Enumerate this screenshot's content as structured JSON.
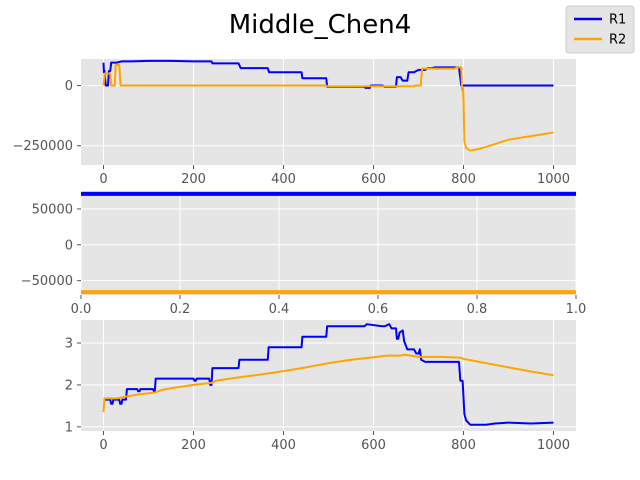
{
  "figure": {
    "title": "Middle_Chen4"
  },
  "legend": {
    "placement": "top-right",
    "entries": [
      {
        "label": "R1",
        "color": "#0000ff"
      },
      {
        "label": "R2",
        "color": "#ffa500"
      }
    ]
  },
  "chart_data": [
    {
      "type": "line",
      "xlim": [
        -50,
        1050
      ],
      "ylim": [
        -330000,
        110000
      ],
      "xticks": [
        0,
        200,
        400,
        600,
        800,
        1000
      ],
      "yticks": [
        0,
        -250000
      ],
      "ytick_labels": [
        "0",
        "−250000"
      ],
      "grid": true,
      "series": [
        {
          "name": "R1",
          "color": "#0000ff",
          "points": [
            [
              0,
              95000
            ],
            [
              1,
              55000
            ],
            [
              2,
              62000
            ],
            [
              5,
              0
            ],
            [
              10,
              0
            ],
            [
              12,
              60000
            ],
            [
              15,
              60000
            ],
            [
              17,
              95000
            ],
            [
              30,
              95000
            ],
            [
              40,
              100000
            ],
            [
              60,
              100000
            ],
            [
              62,
              100000
            ],
            [
              100,
              102000
            ],
            [
              150,
              102000
            ],
            [
              200,
              100000
            ],
            [
              240,
              100000
            ],
            [
              242,
              92000
            ],
            [
              300,
              92000
            ],
            [
              305,
              72000
            ],
            [
              365,
              72000
            ],
            [
              368,
              55000
            ],
            [
              440,
              55000
            ],
            [
              442,
              30000
            ],
            [
              495,
              30000
            ],
            [
              497,
              -5000
            ],
            [
              580,
              -5000
            ],
            [
              582,
              -10000
            ],
            [
              592,
              -10000
            ],
            [
              594,
              0
            ],
            [
              600,
              0
            ],
            [
              620,
              0
            ],
            [
              625,
              -5000
            ],
            [
              650,
              -5000
            ],
            [
              652,
              35000
            ],
            [
              660,
              35000
            ],
            [
              665,
              20000
            ],
            [
              675,
              20000
            ],
            [
              678,
              55000
            ],
            [
              690,
              55000
            ],
            [
              700,
              65000
            ],
            [
              715,
              65000
            ],
            [
              720,
              72000
            ],
            [
              730,
              72000
            ],
            [
              735,
              75000
            ],
            [
              790,
              75000
            ],
            [
              795,
              0
            ],
            [
              800,
              0
            ],
            [
              1000,
              0
            ]
          ]
        },
        {
          "name": "R2",
          "color": "#ffa500",
          "points": [
            [
              0,
              0
            ],
            [
              3,
              50000
            ],
            [
              15,
              50000
            ],
            [
              17,
              0
            ],
            [
              25,
              0
            ],
            [
              27,
              85000
            ],
            [
              35,
              85000
            ],
            [
              38,
              0
            ],
            [
              200,
              0
            ],
            [
              400,
              0
            ],
            [
              495,
              0
            ],
            [
              497,
              -3000
            ],
            [
              690,
              -3000
            ],
            [
              693,
              0
            ],
            [
              700,
              0
            ],
            [
              705,
              0
            ],
            [
              708,
              70000
            ],
            [
              780,
              70000
            ],
            [
              785,
              75000
            ],
            [
              795,
              75000
            ],
            [
              797,
              -20000
            ],
            [
              799,
              -10000
            ],
            [
              800,
              -60000
            ],
            [
              802,
              -235000
            ],
            [
              806,
              -260000
            ],
            [
              815,
              -270000
            ],
            [
              830,
              -265000
            ],
            [
              850,
              -255000
            ],
            [
              875,
              -240000
            ],
            [
              900,
              -225000
            ],
            [
              950,
              -210000
            ],
            [
              1000,
              -195000
            ]
          ]
        }
      ]
    },
    {
      "type": "line",
      "xlim": [
        0,
        1
      ],
      "ylim": [
        -70000,
        75000
      ],
      "xticks": [
        0,
        0.2,
        0.4,
        0.6,
        0.8,
        1
      ],
      "xtick_labels": [
        "0.0",
        "0.2",
        "0.4",
        "0.6",
        "0.8",
        "1.0"
      ],
      "yticks": [
        50000,
        0,
        -50000
      ],
      "ytick_labels": [
        "50000",
        "0",
        "−50000"
      ],
      "grid": true,
      "series": [
        {
          "name": "R1",
          "color": "#0000ff",
          "points": [
            [
              0,
              71000
            ],
            [
              1,
              71000
            ]
          ]
        },
        {
          "name": "R2",
          "color": "#ffa500",
          "points": [
            [
              0,
              -66000
            ],
            [
              1,
              -66000
            ]
          ]
        }
      ]
    },
    {
      "type": "line",
      "xlim": [
        -50,
        1050
      ],
      "ylim": [
        0.9,
        3.55
      ],
      "xticks": [
        0,
        200,
        400,
        600,
        800,
        1000
      ],
      "yticks": [
        3,
        2,
        1
      ],
      "grid": true,
      "series": [
        {
          "name": "R1",
          "color": "#0000ff",
          "points": [
            [
              0,
              1.65
            ],
            [
              15,
              1.65
            ],
            [
              17,
              1.55
            ],
            [
              20,
              1.55
            ],
            [
              22,
              1.65
            ],
            [
              35,
              1.65
            ],
            [
              37,
              1.55
            ],
            [
              40,
              1.55
            ],
            [
              42,
              1.65
            ],
            [
              50,
              1.65
            ],
            [
              52,
              1.9
            ],
            [
              75,
              1.9
            ],
            [
              77,
              1.85
            ],
            [
              80,
              1.85
            ],
            [
              82,
              1.9
            ],
            [
              110,
              1.9
            ],
            [
              112,
              1.85
            ],
            [
              114,
              1.85
            ],
            [
              116,
              2.15
            ],
            [
              200,
              2.15
            ],
            [
              202,
              2.1
            ],
            [
              205,
              2.1
            ],
            [
              207,
              2.15
            ],
            [
              235,
              2.15
            ],
            [
              237,
              2.0
            ],
            [
              240,
              2.0
            ],
            [
              242,
              2.4
            ],
            [
              300,
              2.4
            ],
            [
              302,
              2.6
            ],
            [
              365,
              2.6
            ],
            [
              367,
              2.9
            ],
            [
              440,
              2.9
            ],
            [
              442,
              3.15
            ],
            [
              495,
              3.15
            ],
            [
              497,
              3.4
            ],
            [
              580,
              3.4
            ],
            [
              585,
              3.45
            ],
            [
              620,
              3.4
            ],
            [
              625,
              3.4
            ],
            [
              635,
              3.45
            ],
            [
              640,
              3.35
            ],
            [
              650,
              3.35
            ],
            [
              652,
              3.1
            ],
            [
              655,
              3.1
            ],
            [
              658,
              3.25
            ],
            [
              665,
              3.3
            ],
            [
              668,
              3.05
            ],
            [
              675,
              2.85
            ],
            [
              690,
              2.85
            ],
            [
              695,
              2.75
            ],
            [
              700,
              2.75
            ],
            [
              703,
              2.85
            ],
            [
              706,
              2.6
            ],
            [
              715,
              2.55
            ],
            [
              790,
              2.55
            ],
            [
              793,
              2.1
            ],
            [
              798,
              2.1
            ],
            [
              800,
              1.7
            ],
            [
              802,
              1.3
            ],
            [
              806,
              1.15
            ],
            [
              815,
              1.05
            ],
            [
              850,
              1.05
            ],
            [
              870,
              1.08
            ],
            [
              900,
              1.1
            ],
            [
              950,
              1.08
            ],
            [
              1000,
              1.1
            ]
          ]
        },
        {
          "name": "R2",
          "color": "#ffa500",
          "points": [
            [
              0,
              1.35
            ],
            [
              2,
              1.68
            ],
            [
              10,
              1.68
            ],
            [
              30,
              1.68
            ],
            [
              50,
              1.72
            ],
            [
              75,
              1.77
            ],
            [
              100,
              1.8
            ],
            [
              115,
              1.82
            ],
            [
              130,
              1.88
            ],
            [
              150,
              1.92
            ],
            [
              200,
              2.0
            ],
            [
              240,
              2.05
            ],
            [
              250,
              2.1
            ],
            [
              300,
              2.18
            ],
            [
              350,
              2.25
            ],
            [
              400,
              2.33
            ],
            [
              450,
              2.42
            ],
            [
              500,
              2.52
            ],
            [
              550,
              2.6
            ],
            [
              600,
              2.66
            ],
            [
              630,
              2.7
            ],
            [
              660,
              2.7
            ],
            [
              670,
              2.72
            ],
            [
              700,
              2.67
            ],
            [
              720,
              2.67
            ],
            [
              750,
              2.67
            ],
            [
              795,
              2.65
            ],
            [
              800,
              2.62
            ],
            [
              850,
              2.52
            ],
            [
              900,
              2.42
            ],
            [
              950,
              2.32
            ],
            [
              1000,
              2.23
            ]
          ]
        }
      ]
    }
  ]
}
